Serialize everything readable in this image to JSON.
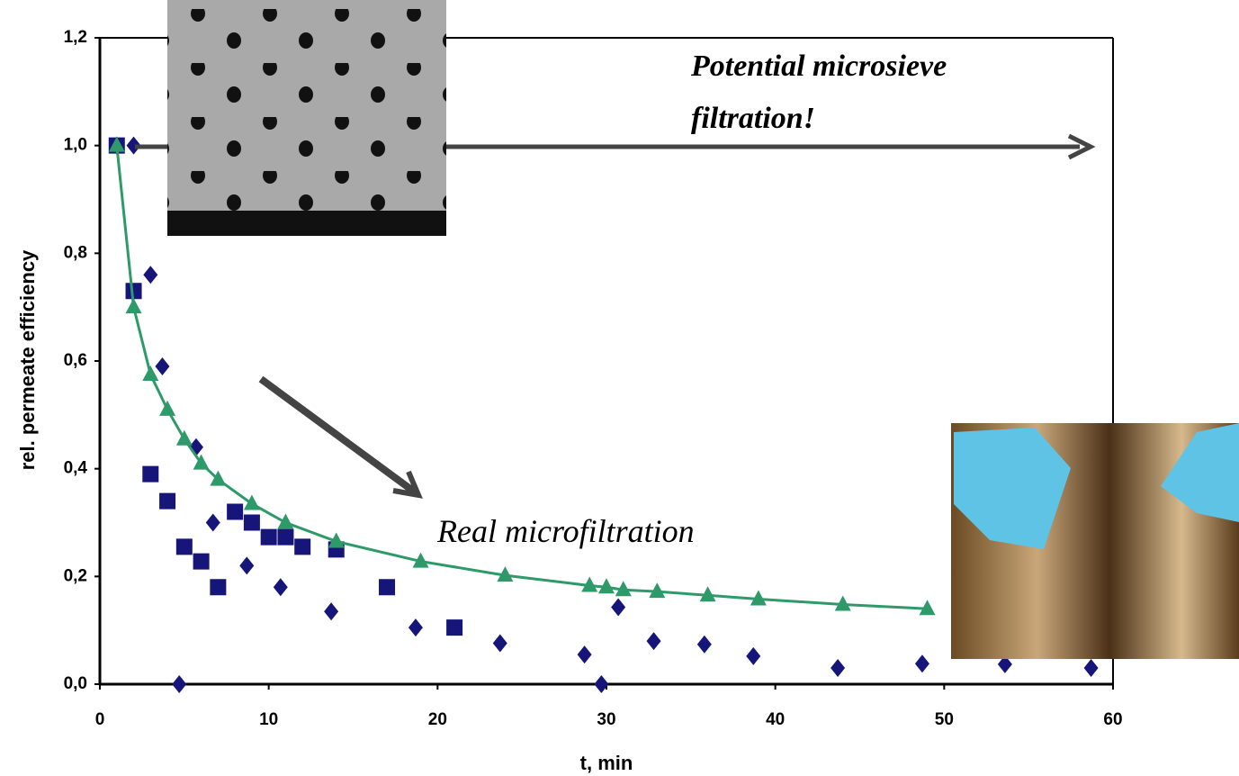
{
  "chart_data": {
    "type": "scatter",
    "xlabel": "t, min",
    "ylabel": "rel. permeate efficiency",
    "annotations": [
      "Potential microsieve",
      "filtration!",
      "Real microfiltration"
    ],
    "xlim": [
      0,
      60
    ],
    "ylim": [
      0,
      1.2
    ],
    "xticks": [
      0,
      10,
      20,
      30,
      40,
      50,
      60
    ],
    "yticks": [
      {
        "value": 0,
        "label": "0,0"
      },
      {
        "value": 0.2,
        "label": "0,2"
      },
      {
        "value": 0.4,
        "label": "0,4"
      },
      {
        "value": 0.6,
        "label": "0,6"
      },
      {
        "value": 0.8,
        "label": "0,8"
      },
      {
        "value": 1.0,
        "label": "1,0"
      },
      {
        "value": 1.2,
        "label": "1,2"
      }
    ],
    "series": [
      {
        "marker": "diamond",
        "color": "#15157a",
        "x": [
          1,
          2,
          3,
          3.7,
          4.7,
          5.7,
          6.7,
          8.7,
          10.7,
          13.7,
          18.7,
          23.7,
          28.7,
          29.7,
          30.7,
          32.8,
          35.8,
          38.7,
          43.7,
          48.7,
          53.6,
          58.7
        ],
        "values": [
          1.0,
          1.0,
          0.76,
          0.59,
          0,
          0.44,
          0.3,
          0.22,
          0.18,
          0.135,
          0.105,
          0.076,
          0.055,
          0,
          0.143,
          0.08,
          0.074,
          0.052,
          0.03,
          0.038,
          0.037,
          0.03
        ]
      },
      {
        "marker": "square",
        "color": "#15157a",
        "x": [
          1,
          2,
          3,
          4,
          5,
          6,
          7,
          8,
          9,
          10,
          11,
          12,
          14,
          17,
          21
        ],
        "values": [
          1.0,
          0.73,
          0.39,
          0.34,
          0.255,
          0.228,
          0.18,
          0.32,
          0.3,
          0.273,
          0.273,
          0.255,
          0.25,
          0.18,
          0.105
        ]
      },
      {
        "marker": "triangle",
        "color": "#2e9a6a",
        "line": true,
        "x": [
          1,
          2,
          3,
          4,
          5,
          6,
          7,
          9,
          11,
          14,
          19,
          24,
          29,
          30,
          31,
          33,
          36,
          39,
          44,
          49
        ],
        "values": [
          1.0,
          0.7,
          0.575,
          0.51,
          0.455,
          0.41,
          0.38,
          0.335,
          0.3,
          0.265,
          0.228,
          0.202,
          0.183,
          0.18,
          0.175,
          0.172,
          0.165,
          0.158,
          0.148,
          0.14
        ]
      }
    ]
  }
}
